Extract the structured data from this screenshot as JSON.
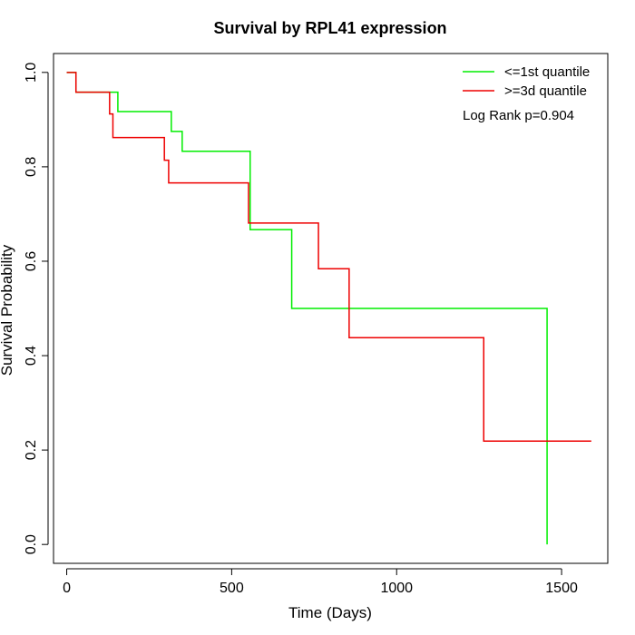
{
  "chart_data": {
    "type": "line",
    "title": "Survival by RPL41 expression",
    "xlabel": "Time (Days)",
    "ylabel": "Survival Probability",
    "xlim": [
      -40,
      1640
    ],
    "ylim": [
      -0.04,
      1.04
    ],
    "xticks": [
      0,
      500,
      1000,
      1500
    ],
    "yticks": [
      0.0,
      0.2,
      0.4,
      0.6,
      0.8,
      1.0
    ],
    "xtick_labels": [
      "0",
      "500",
      "1000",
      "1500"
    ],
    "ytick_labels": [
      "0.0",
      "0.2",
      "0.4",
      "0.6",
      "0.8",
      "1.0"
    ],
    "legend_position": "top-right",
    "annotation": "Log Rank p=0.904",
    "grid": false,
    "series": [
      {
        "name": "<=1st quantile",
        "color": "#00ee00",
        "step": true,
        "x": [
          0,
          28,
          155,
          317,
          350,
          556,
          682,
          1456,
          1456
        ],
        "y": [
          1.0,
          0.958,
          0.917,
          0.875,
          0.833,
          0.667,
          0.5,
          0.5,
          0.0
        ]
      },
      {
        "name": ">=3d quantile",
        "color": "#ee0000",
        "step": true,
        "x": [
          0,
          28,
          130,
          140,
          284,
          296,
          309,
          551,
          763,
          856,
          1264,
          1590
        ],
        "y": [
          1.0,
          0.958,
          0.912,
          0.862,
          0.862,
          0.814,
          0.766,
          0.681,
          0.584,
          0.438,
          0.219,
          0.219
        ]
      }
    ]
  }
}
